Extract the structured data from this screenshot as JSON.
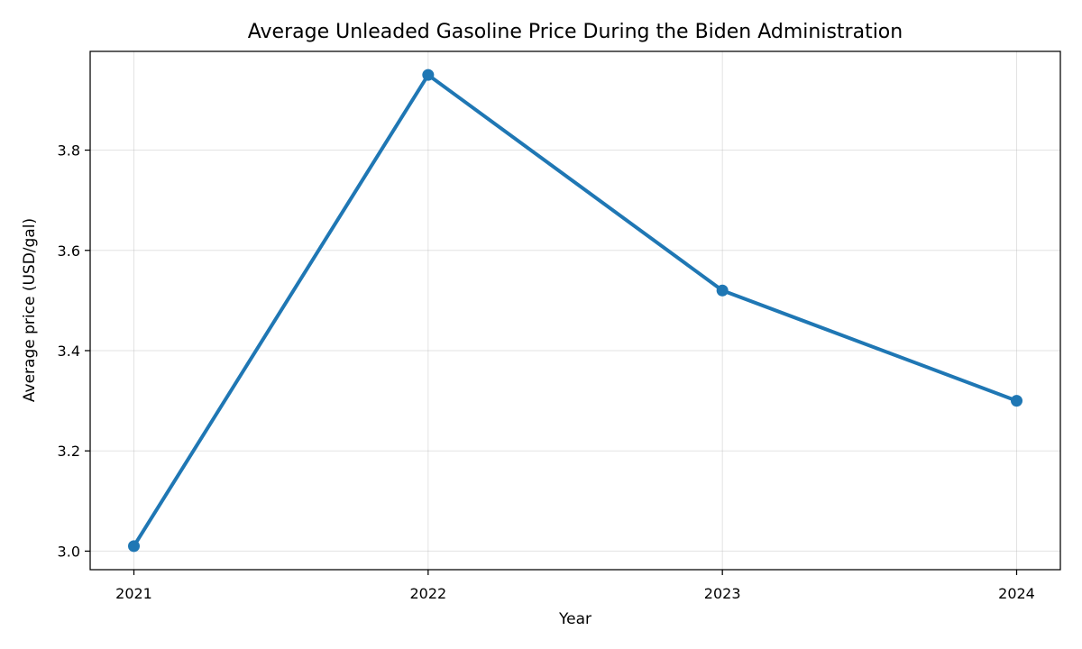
{
  "chart_data": {
    "type": "line",
    "title": "Average Unleaded Gasoline Price During the Biden Administration",
    "xlabel": "Year",
    "ylabel": "Average price (USD/gal)",
    "x": [
      "2021",
      "2022",
      "2023",
      "2024"
    ],
    "series": [
      {
        "values": [
          3.01,
          3.95,
          3.52,
          3.3
        ],
        "color": "#1f77b4"
      }
    ],
    "ylim": [
      2.963,
      3.997
    ],
    "yticks": [
      3.0,
      3.2,
      3.4,
      3.6,
      3.8
    ],
    "ytick_labels": [
      "3.0",
      "3.2",
      "3.4",
      "3.6",
      "3.8"
    ],
    "grid": true,
    "marker": "circle"
  }
}
